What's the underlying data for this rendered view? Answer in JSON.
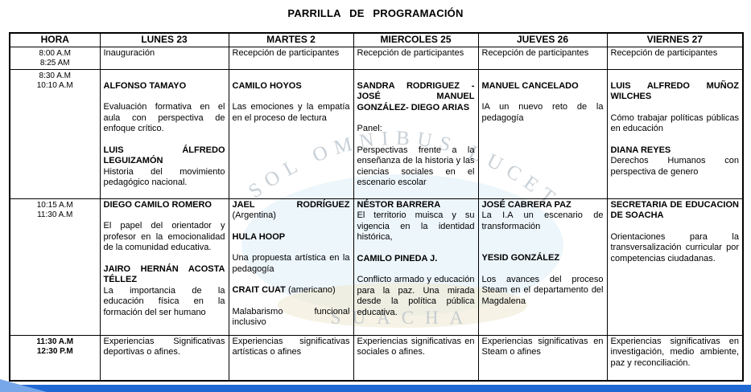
{
  "title": "PARRILLA  DE  PROGRAMACIÓN",
  "watermark": {
    "arc_text": "SOL OMNIBUS LUCET",
    "bottom_text": "SUACHA"
  },
  "colors": {
    "accent_blue": "#2069d5",
    "wedge_blue": "#78a7e9",
    "watermark_text": "#b6c1ca",
    "watermark_blob": "#dcedf8",
    "watermark_sand": "#efe7cf",
    "border": "#000000"
  },
  "table": {
    "headers": [
      "HORA",
      "LUNES 23",
      "MARTES 2",
      "MIERCOLES 25",
      "JUEVES 26",
      "VIERNES 27"
    ],
    "rows": [
      {
        "time": [
          "8:00 A.M",
          "8:25 AM"
        ],
        "bold_time": false,
        "cells": [
          [
            {
              "gap": 0,
              "segs": [
                {
                  "t": "Inauguración",
                  "b": false
                }
              ]
            }
          ],
          [
            {
              "gap": 0,
              "segs": [
                {
                  "t": "Recepción de participantes",
                  "b": false
                }
              ]
            }
          ],
          [
            {
              "gap": 0,
              "segs": [
                {
                  "t": "Recepción de participantes",
                  "b": false
                }
              ]
            }
          ],
          [
            {
              "gap": 0,
              "segs": [
                {
                  "t": "Recepción de participantes",
                  "b": false
                }
              ]
            }
          ],
          [
            {
              "gap": 0,
              "segs": [
                {
                  "t": "Recepción de participantes",
                  "b": false
                }
              ]
            }
          ]
        ]
      },
      {
        "time": [
          "8:30 A.M",
          "10:10 A.M"
        ],
        "bold_time": false,
        "cells": [
          [
            {
              "gap": 1,
              "segs": [
                {
                  "t": "ALFONSO TAMAYO",
                  "b": true
                }
              ]
            },
            {
              "gap": 1,
              "segs": [
                {
                  "t": "Evaluación formativa en el aula con perspectiva de enfoque crítico.",
                  "b": false
                }
              ]
            },
            {
              "gap": 1,
              "segs": [
                {
                  "t": "LUIS ÁLFREDO LEGUIZAMÓN",
                  "b": true
                }
              ]
            },
            {
              "gap": 0,
              "segs": [
                {
                  "t": "Historia del movimiento pedagógico nacional.",
                  "b": false
                }
              ]
            }
          ],
          [
            {
              "gap": 1,
              "segs": [
                {
                  "t": "CAMILO HOYOS",
                  "b": true
                }
              ]
            },
            {
              "gap": 1,
              "segs": [
                {
                  "t": "Las emociones y la empatía en el proceso de lectura",
                  "b": false
                }
              ]
            }
          ],
          [
            {
              "gap": 1,
              "segs": [
                {
                  "t": "SANDRA RODRIGUEZ - JOSÉ MANUEL GONZÁLEZ- DIEGO ARIAS",
                  "b": true
                }
              ]
            },
            {
              "gap": 1,
              "segs": [
                {
                  "t": "Panel:",
                  "b": false
                }
              ]
            },
            {
              "gap": 1,
              "segs": [
                {
                  "t": "Perspectivas frente a la enseñanza de la historia y las ciencias sociales en el escenario escolar",
                  "b": false
                }
              ]
            }
          ],
          [
            {
              "gap": 1,
              "segs": [
                {
                  "t": "MANUEL CANCELADO",
                  "b": true
                }
              ]
            },
            {
              "gap": 1,
              "segs": [
                {
                  "t": "IA un nuevo reto de la pedagogía",
                  "b": false
                }
              ]
            }
          ],
          [
            {
              "gap": 1,
              "segs": [
                {
                  "t": "LUIS ALFREDO MUÑOZ WILCHES",
                  "b": true
                }
              ]
            },
            {
              "gap": 1,
              "segs": [
                {
                  "t": "Cómo trabajar políticas públicas en educación",
                  "b": false
                }
              ]
            },
            {
              "gap": 1,
              "segs": [
                {
                  "t": "DIANA REYES",
                  "b": true
                }
              ]
            },
            {
              "gap": 0,
              "segs": [
                {
                  "t": "Derechos Humanos con perspectiva de genero",
                  "b": false
                }
              ]
            }
          ]
        ]
      },
      {
        "time": [
          "10:15 A.M",
          "11:30 A.M"
        ],
        "bold_time": false,
        "cells": [
          [
            {
              "gap": 0,
              "segs": [
                {
                  "t": "DIEGO CAMILO ROMERO",
                  "b": true
                }
              ]
            },
            {
              "gap": 1,
              "segs": [
                {
                  "t": "El papel del orientador y profesor en la emocionalidad de la comunidad educativa.",
                  "b": false
                }
              ]
            },
            {
              "gap": 1,
              "segs": [
                {
                  "t": "JAIRO HERNÁN ACOSTA TÉLLEZ",
                  "b": true
                }
              ]
            },
            {
              "gap": 0,
              "segs": [
                {
                  "t": "La importancia de la educación física en la formación del ser humano",
                  "b": false
                }
              ]
            }
          ],
          [
            {
              "gap": 0,
              "segs": [
                {
                  "t": "JAEL RODRÍGUEZ ",
                  "b": true
                },
                {
                  "t": "(Argentina)",
                  "b": false
                }
              ]
            },
            {
              "gap": 1,
              "segs": [
                {
                  "t": "HULA HOOP",
                  "b": true
                }
              ]
            },
            {
              "gap": 1,
              "segs": [
                {
                  "t": "Una propuesta artística en la pedagogía",
                  "b": false
                }
              ]
            },
            {
              "gap": 1,
              "segs": [
                {
                  "t": "CRAIT CUAT",
                  "b": true
                },
                {
                  "t": " (americano)",
                  "b": false
                }
              ]
            },
            {
              "gap": 1,
              "segs": [
                {
                  "t": "Malabarismo funcional inclusivo",
                  "b": false
                }
              ]
            }
          ],
          [
            {
              "gap": 0,
              "segs": [
                {
                  "t": "NÉSTOR BARRERA",
                  "b": true
                }
              ]
            },
            {
              "gap": 0,
              "segs": [
                {
                  "t": "El territorio muisca y su vigencia en la identidad histórica,",
                  "b": false
                }
              ]
            },
            {
              "gap": 1,
              "segs": [
                {
                  "t": "CAMILO PINEDA J.",
                  "b": true
                }
              ]
            },
            {
              "gap": 1,
              "segs": [
                {
                  "t": "Conflicto armado y educación para la paz. Una mirada desde la política pública educativa.",
                  "b": false
                }
              ]
            }
          ],
          [
            {
              "gap": 0,
              "segs": [
                {
                  "t": "JOSÉ CABRERA PAZ",
                  "b": true
                }
              ]
            },
            {
              "gap": 0,
              "segs": [
                {
                  "t": "La I.A un escenario de transformación",
                  "b": false
                }
              ]
            },
            {
              "gap": 2,
              "segs": [
                {
                  "t": "YESID GONZÁLEZ",
                  "b": true
                }
              ]
            },
            {
              "gap": 1,
              "segs": [
                {
                  "t": "Los avances del proceso Steam en el departamento del Magdalena",
                  "b": false
                }
              ]
            }
          ],
          [
            {
              "gap": 0,
              "segs": [
                {
                  "t": "SECRETARIA DE EDUCACION DE SOACHA",
                  "b": true
                }
              ]
            },
            {
              "gap": 1,
              "segs": [
                {
                  "t": "Orientaciones para la transversalización curricular por competencias ciudadanas.",
                  "b": false
                }
              ]
            }
          ]
        ]
      },
      {
        "time": [
          "11:30 A.M",
          "12:30 P.M"
        ],
        "bold_time": true,
        "cells": [
          [
            {
              "gap": 0,
              "segs": [
                {
                  "t": "Experiencias Significativas deportivas o afines.",
                  "b": false
                }
              ]
            }
          ],
          [
            {
              "gap": 0,
              "segs": [
                {
                  "t": "Experiencias significativas artísticas o afines",
                  "b": false
                }
              ]
            }
          ],
          [
            {
              "gap": 0,
              "segs": [
                {
                  "t": "Experiencias significativas en sociales o afines.",
                  "b": false
                }
              ]
            }
          ],
          [
            {
              "gap": 0,
              "segs": [
                {
                  "t": "Experiencias significativas en Steam o afines",
                  "b": false
                }
              ]
            }
          ],
          [
            {
              "gap": 0,
              "segs": [
                {
                  "t": "Experiencias significativas en investigación, medio ambiente, paz y reconciliación.",
                  "b": false
                }
              ]
            }
          ]
        ]
      }
    ]
  }
}
